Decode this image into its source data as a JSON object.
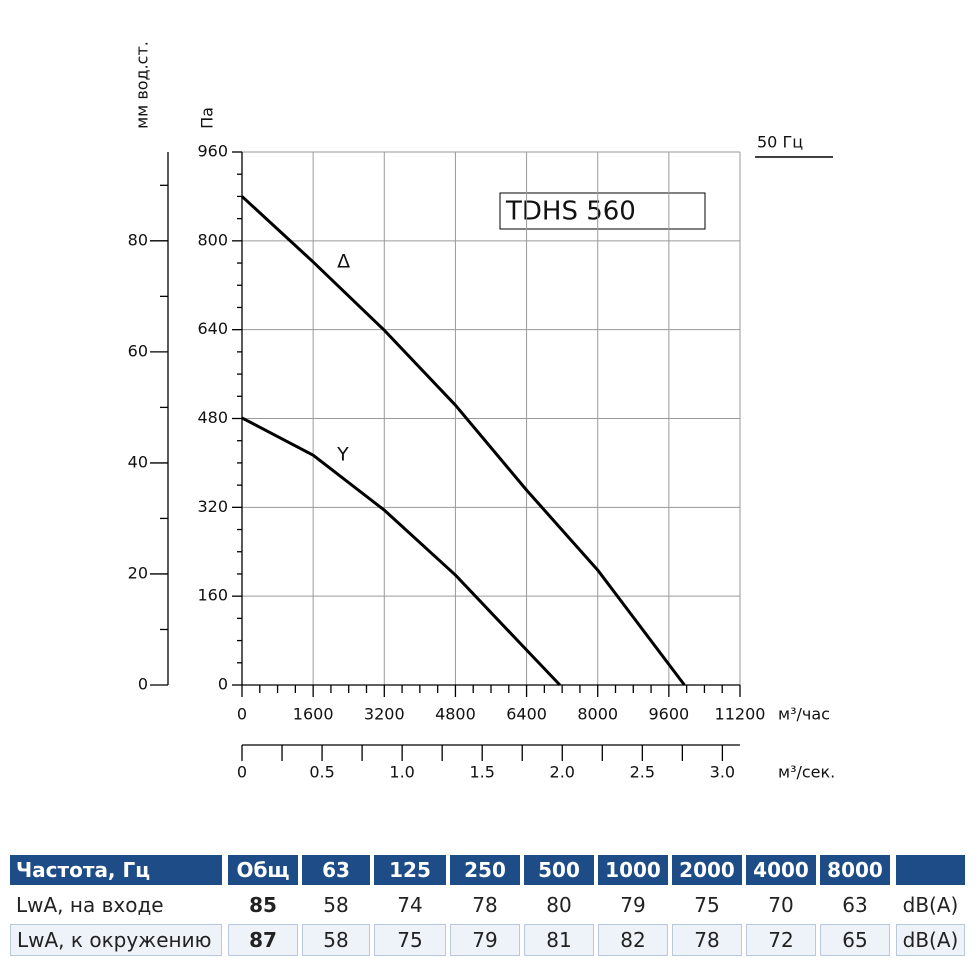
{
  "chart_data": {
    "type": "line",
    "model": "TDHS 560",
    "frequency": "50 Гц",
    "ylabel": "Па",
    "y2label": "мм вод.ст.",
    "xlabel": "м³/час",
    "x2label": "м³/сек.",
    "x": [
      0,
      1600,
      3200,
      4800,
      6400,
      8000,
      9950,
      7150
    ],
    "series": [
      {
        "name": "Δ",
        "color": "#000000",
        "x": [
          0,
          1600,
          3200,
          4800,
          6400,
          8000,
          9950
        ],
        "values": [
          880,
          762,
          639,
          504,
          351,
          207,
          0
        ]
      },
      {
        "name": "Y",
        "color": "#000000",
        "x": [
          0,
          1600,
          3200,
          4800,
          6400,
          7150
        ],
        "values": [
          481,
          414,
          315,
          198,
          63,
          0
        ]
      }
    ],
    "xlim": [
      0,
      11200
    ],
    "xticks": [
      0,
      1600,
      3200,
      4800,
      6400,
      8000,
      9600,
      11200
    ],
    "ylim": [
      0,
      960
    ],
    "yticks": [
      0,
      160,
      320,
      480,
      640,
      800,
      960
    ],
    "y2lim": [
      0,
      96
    ],
    "y2ticks": [
      0,
      20,
      40,
      60,
      80
    ],
    "x2lim": [
      0,
      3.11
    ],
    "x2ticks": [
      0,
      0.5,
      {
        "value": 1,
        "label": "1.0"
      },
      1.5,
      {
        "value": 2,
        "label": "2.0"
      },
      2.5,
      {
        "value": 3,
        "label": "3.0"
      }
    ],
    "grid": true
  },
  "table": {
    "header": [
      "Частота, Гц",
      "Общ",
      "63",
      "125",
      "250",
      "500",
      "1000",
      "2000",
      "4000",
      "8000"
    ],
    "rows": [
      [
        "LwA, на входе",
        85,
        58,
        74,
        78,
        80,
        79,
        75,
        70,
        63,
        "dB(A)"
      ],
      [
        "LwA, к окружению",
        87,
        58,
        75,
        79,
        81,
        82,
        78,
        72,
        65,
        "dB(A)"
      ]
    ]
  }
}
